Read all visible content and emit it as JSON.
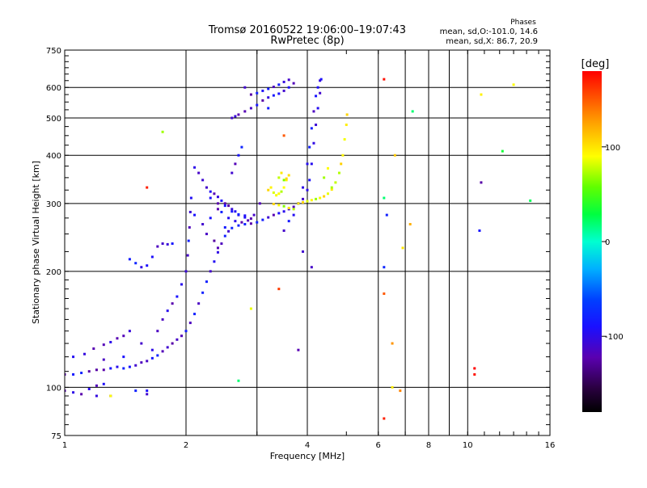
{
  "chart_data": {
    "type": "scatter",
    "title_line1": "Tromsø 20160522 19:06:00–19:07:43",
    "title_line2": "RwPretec (8p)",
    "stats_title": "Phases",
    "stats_line1": "mean, sd,O:-101.0, 14.6",
    "stats_line2": "mean, sd,X:  86.7, 20.9",
    "xlabel": "Frequency [MHz]",
    "ylabel": "Stationary phase Virtual Height [km]",
    "x_scale": "log",
    "y_scale": "log",
    "xlim": [
      1,
      16
    ],
    "ylim": [
      75,
      750
    ],
    "x_ticks": [
      1,
      2,
      4,
      6,
      8,
      10,
      16
    ],
    "x_tick_labels": [
      "1",
      "2",
      "4",
      "6",
      "8",
      "10",
      "16"
    ],
    "x_gridlines": [
      1,
      2,
      3,
      4,
      6,
      7,
      8,
      9,
      10
    ],
    "y_ticks": [
      75,
      100,
      200,
      300,
      400,
      500,
      600,
      750
    ],
    "y_tick_labels": [
      "75",
      "100",
      "200",
      "300",
      "400",
      "500",
      "600",
      "750"
    ],
    "y_gridlines": [
      100,
      200,
      300,
      400,
      500,
      600
    ],
    "grid": true,
    "colorbar": {
      "label": "[deg]",
      "range": [
        -180,
        180
      ],
      "ticks": [
        100,
        0,
        -100
      ],
      "tick_labels": [
        "100",
        "0",
        "-100"
      ]
    },
    "series": [
      {
        "name": "O",
        "phase_deg": -101.0,
        "points": [
          [
            1.0,
            108
          ],
          [
            1.05,
            108
          ],
          [
            1.1,
            109
          ],
          [
            1.15,
            110
          ],
          [
            1.2,
            111
          ],
          [
            1.25,
            111
          ],
          [
            1.3,
            112
          ],
          [
            1.35,
            113
          ],
          [
            1.4,
            112
          ],
          [
            1.45,
            113
          ],
          [
            1.5,
            114
          ],
          [
            1.55,
            116
          ],
          [
            1.6,
            117
          ],
          [
            1.65,
            119
          ],
          [
            1.7,
            121
          ],
          [
            1.75,
            124
          ],
          [
            1.8,
            127
          ],
          [
            1.85,
            130
          ],
          [
            1.9,
            133
          ],
          [
            1.95,
            136
          ],
          [
            2.0,
            140
          ],
          [
            2.05,
            147
          ],
          [
            2.1,
            155
          ],
          [
            2.15,
            165
          ],
          [
            2.2,
            176
          ],
          [
            2.25,
            188
          ],
          [
            2.3,
            200
          ],
          [
            2.35,
            212
          ],
          [
            2.4,
            224
          ],
          [
            2.45,
            236
          ],
          [
            2.5,
            247
          ],
          [
            2.55,
            254
          ],
          [
            2.6,
            259
          ],
          [
            2.7,
            263
          ],
          [
            2.8,
            265
          ],
          [
            2.9,
            266
          ],
          [
            3.0,
            268
          ],
          [
            3.1,
            272
          ],
          [
            3.2,
            276
          ],
          [
            3.3,
            280
          ],
          [
            3.4,
            283
          ],
          [
            3.5,
            286
          ],
          [
            3.6,
            290
          ],
          [
            3.7,
            294
          ],
          [
            3.8,
            300
          ],
          [
            3.9,
            308
          ],
          [
            4.0,
            325
          ],
          [
            4.05,
            345
          ],
          [
            4.1,
            380
          ],
          [
            4.15,
            430
          ],
          [
            4.2,
            480
          ],
          [
            4.25,
            530
          ],
          [
            4.3,
            580
          ],
          [
            4.33,
            630
          ],
          [
            1.0,
            98
          ],
          [
            1.05,
            97
          ],
          [
            1.1,
            96
          ],
          [
            1.15,
            99
          ],
          [
            1.2,
            101
          ],
          [
            1.25,
            102
          ],
          [
            1.5,
            98
          ],
          [
            1.6,
            96
          ],
          [
            1.05,
            120
          ],
          [
            1.12,
            122
          ],
          [
            1.18,
            126
          ],
          [
            1.25,
            129
          ],
          [
            1.3,
            131
          ],
          [
            1.35,
            134
          ],
          [
            1.4,
            136
          ],
          [
            1.45,
            140
          ],
          [
            1.7,
            140
          ],
          [
            1.75,
            150
          ],
          [
            1.8,
            158
          ],
          [
            1.85,
            165
          ],
          [
            1.9,
            172
          ],
          [
            1.95,
            185
          ],
          [
            2.0,
            200
          ],
          [
            2.02,
            220
          ],
          [
            2.03,
            240
          ],
          [
            2.04,
            260
          ],
          [
            2.05,
            285
          ],
          [
            2.06,
            310
          ],
          [
            1.45,
            215
          ],
          [
            1.5,
            210
          ],
          [
            1.55,
            205
          ],
          [
            1.6,
            207
          ],
          [
            1.65,
            218
          ],
          [
            1.7,
            232
          ],
          [
            1.75,
            236
          ],
          [
            1.8,
            235
          ],
          [
            1.85,
            236
          ],
          [
            2.1,
            372
          ],
          [
            2.15,
            360
          ],
          [
            2.2,
            345
          ],
          [
            2.25,
            330
          ],
          [
            2.3,
            322
          ],
          [
            2.35,
            318
          ],
          [
            2.4,
            312
          ],
          [
            2.45,
            305
          ],
          [
            2.5,
            300
          ],
          [
            2.55,
            296
          ],
          [
            2.6,
            290
          ],
          [
            2.65,
            286
          ],
          [
            2.7,
            280
          ],
          [
            2.8,
            276
          ],
          [
            2.9,
            274
          ],
          [
            2.3,
            310
          ],
          [
            2.4,
            300
          ],
          [
            2.5,
            296
          ],
          [
            2.6,
            286
          ],
          [
            2.7,
            281
          ],
          [
            2.8,
            279
          ],
          [
            2.6,
            360
          ],
          [
            2.65,
            380
          ],
          [
            2.7,
            400
          ],
          [
            2.75,
            420
          ],
          [
            2.6,
            500
          ],
          [
            2.65,
            505
          ],
          [
            2.7,
            510
          ],
          [
            2.8,
            520
          ],
          [
            2.9,
            530
          ],
          [
            3.0,
            540
          ],
          [
            3.1,
            555
          ],
          [
            3.2,
            565
          ],
          [
            3.3,
            572
          ],
          [
            3.4,
            578
          ],
          [
            3.5,
            588
          ],
          [
            3.6,
            600
          ],
          [
            3.7,
            615
          ],
          [
            2.9,
            575
          ],
          [
            3.0,
            580
          ],
          [
            3.1,
            588
          ],
          [
            3.2,
            595
          ],
          [
            3.3,
            602
          ],
          [
            3.4,
            610
          ],
          [
            3.5,
            620
          ],
          [
            3.6,
            628
          ],
          [
            3.5,
            255
          ],
          [
            3.6,
            270
          ],
          [
            3.7,
            280
          ],
          [
            3.8,
            300
          ],
          [
            3.9,
            330
          ],
          [
            4.0,
            380
          ],
          [
            4.05,
            420
          ],
          [
            4.1,
            470
          ],
          [
            4.15,
            520
          ],
          [
            4.2,
            570
          ],
          [
            4.25,
            600
          ],
          [
            4.3,
            625
          ],
          [
            1.6,
            98
          ],
          [
            1.2,
            95
          ],
          [
            2.3,
            275
          ],
          [
            2.5,
            260
          ],
          [
            2.35,
            240
          ],
          [
            2.4,
            230
          ],
          [
            2.2,
            265
          ],
          [
            2.25,
            250
          ],
          [
            2.1,
            280
          ],
          [
            2.4,
            290
          ],
          [
            2.45,
            285
          ],
          [
            2.55,
            275
          ],
          [
            2.65,
            270
          ],
          [
            2.75,
            268
          ],
          [
            2.85,
            271
          ],
          [
            2.95,
            280
          ],
          [
            3.05,
            300
          ],
          [
            1.3,
            95
          ],
          [
            1.25,
            118
          ],
          [
            1.4,
            120
          ],
          [
            1.55,
            130
          ],
          [
            1.65,
            125
          ],
          [
            2.8,
            600
          ],
          [
            3.2,
            530
          ],
          [
            3.9,
            225
          ],
          [
            4.1,
            205
          ],
          [
            3.8,
            125
          ],
          [
            6.2,
            205
          ],
          [
            6.3,
            280
          ],
          [
            10.8,
            340
          ],
          [
            10.7,
            255
          ]
        ]
      },
      {
        "name": "X",
        "phase_deg": 86.7,
        "points": [
          [
            3.2,
            325
          ],
          [
            3.25,
            330
          ],
          [
            3.3,
            320
          ],
          [
            3.35,
            315
          ],
          [
            3.4,
            318
          ],
          [
            3.45,
            322
          ],
          [
            3.5,
            330
          ],
          [
            3.55,
            345
          ],
          [
            3.6,
            355
          ],
          [
            3.4,
            350
          ],
          [
            3.45,
            360
          ],
          [
            3.5,
            345
          ],
          [
            3.55,
            348
          ],
          [
            3.8,
            300
          ],
          [
            3.9,
            302
          ],
          [
            4.0,
            304
          ],
          [
            4.1,
            306
          ],
          [
            4.2,
            308
          ],
          [
            4.3,
            310
          ],
          [
            4.4,
            313
          ],
          [
            4.5,
            318
          ],
          [
            4.6,
            326
          ],
          [
            4.7,
            340
          ],
          [
            4.8,
            360
          ],
          [
            4.85,
            380
          ],
          [
            4.9,
            400
          ],
          [
            4.95,
            440
          ],
          [
            5.0,
            480
          ],
          [
            5.02,
            510
          ],
          [
            4.4,
            350
          ],
          [
            4.5,
            370
          ],
          [
            4.6,
            330
          ],
          [
            3.7,
            290
          ],
          [
            3.6,
            292
          ],
          [
            3.5,
            295
          ],
          [
            3.4,
            297
          ],
          [
            3.3,
            299
          ],
          [
            1.75,
            460
          ],
          [
            2.9,
            160
          ],
          [
            6.5,
            100
          ]
        ]
      }
    ],
    "outliers": [
      {
        "x": 6.2,
        "y": 630,
        "phase": 175
      },
      {
        "x": 3.5,
        "y": 450,
        "phase": 150
      },
      {
        "x": 6.2,
        "y": 175,
        "phase": 150
      },
      {
        "x": 6.5,
        "y": 130,
        "phase": 130
      },
      {
        "x": 6.8,
        "y": 98,
        "phase": 135
      },
      {
        "x": 6.2,
        "y": 83,
        "phase": 170
      },
      {
        "x": 7.3,
        "y": 520,
        "phase": 20
      },
      {
        "x": 6.2,
        "y": 310,
        "phase": 20
      },
      {
        "x": 6.6,
        "y": 400,
        "phase": 110
      },
      {
        "x": 6.9,
        "y": 230,
        "phase": 100
      },
      {
        "x": 7.2,
        "y": 265,
        "phase": 120
      },
      {
        "x": 10.4,
        "y": 112,
        "phase": 180
      },
      {
        "x": 10.4,
        "y": 108,
        "phase": 175
      },
      {
        "x": 10.8,
        "y": 575,
        "phase": 95
      },
      {
        "x": 12.2,
        "y": 410,
        "phase": 35
      },
      {
        "x": 13.0,
        "y": 610,
        "phase": 90
      },
      {
        "x": 14.3,
        "y": 305,
        "phase": 25
      },
      {
        "x": 3.4,
        "y": 180,
        "phase": 160
      },
      {
        "x": 1.6,
        "y": 330,
        "phase": 170
      },
      {
        "x": 1.3,
        "y": 95,
        "phase": 90
      },
      {
        "x": 2.7,
        "y": 104,
        "phase": 20
      }
    ]
  }
}
